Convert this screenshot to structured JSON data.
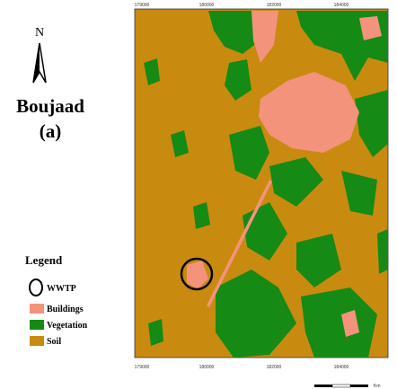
{
  "header": {
    "north": "N",
    "title": "Boujaad",
    "subtitle": "(a)"
  },
  "legend": {
    "title": "Legend",
    "items": [
      "WWTP",
      "Buildings",
      "Vegetation",
      "Soil"
    ]
  },
  "map": {
    "x_labels": [
      "179000",
      "180000",
      "182000",
      "184000"
    ],
    "scale_unit": "Km"
  }
}
